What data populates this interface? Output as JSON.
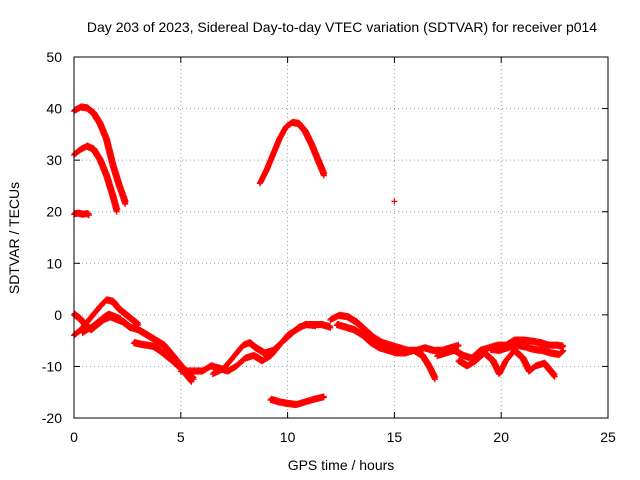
{
  "chart_data": {
    "type": "scatter",
    "title": "Day 203 of 2023, Sidereal Day-to-day VTEC variation (SDTVAR) for receiver p014",
    "xlabel": "GPS time / hours",
    "ylabel": "SDTVAR / TECUs",
    "xlim": [
      0,
      25
    ],
    "ylim": [
      -20,
      50
    ],
    "xticks": [
      0,
      5,
      10,
      15,
      20,
      25
    ],
    "yticks": [
      -20,
      -10,
      0,
      10,
      20,
      30,
      40,
      50
    ],
    "grid": true,
    "marker": "+",
    "color": "#ff0000",
    "series": [
      {
        "name": "arc-top-40",
        "points": [
          [
            0.0,
            39.5
          ],
          [
            0.3,
            40.2
          ],
          [
            0.6,
            40.0
          ],
          [
            0.9,
            39.0
          ],
          [
            1.2,
            37.0
          ],
          [
            1.5,
            34.0
          ],
          [
            1.8,
            29.0
          ],
          [
            2.1,
            25.0
          ],
          [
            2.4,
            21.5
          ]
        ]
      },
      {
        "name": "arc-top-32",
        "points": [
          [
            0.0,
            31.0
          ],
          [
            0.3,
            32.0
          ],
          [
            0.6,
            32.6
          ],
          [
            0.9,
            32.0
          ],
          [
            1.2,
            30.0
          ],
          [
            1.5,
            27.0
          ],
          [
            1.8,
            23.0
          ],
          [
            2.0,
            20.0
          ]
        ]
      },
      {
        "name": "short-20",
        "points": [
          [
            0.0,
            19.5
          ],
          [
            0.2,
            19.6
          ],
          [
            0.4,
            19.4
          ],
          [
            0.6,
            19.5
          ],
          [
            0.7,
            19.3
          ]
        ]
      },
      {
        "name": "arc-mid-37",
        "points": [
          [
            8.7,
            25.5
          ],
          [
            9.0,
            28.0
          ],
          [
            9.3,
            31.0
          ],
          [
            9.6,
            34.0
          ],
          [
            9.9,
            36.3
          ],
          [
            10.2,
            37.2
          ],
          [
            10.5,
            37.0
          ],
          [
            10.8,
            35.5
          ],
          [
            11.1,
            33.0
          ],
          [
            11.4,
            30.0
          ],
          [
            11.7,
            27.0
          ]
        ]
      },
      {
        "name": "isolated-point",
        "points": [
          [
            15.0,
            22.0
          ]
        ]
      },
      {
        "name": "arc-bottom-neg17",
        "points": [
          [
            9.2,
            -16.5
          ],
          [
            9.6,
            -17.0
          ],
          [
            10.0,
            -17.3
          ],
          [
            10.4,
            -17.5
          ],
          [
            10.8,
            -17.0
          ],
          [
            11.2,
            -16.5
          ],
          [
            11.7,
            -16.0
          ]
        ]
      },
      {
        "name": "band-a",
        "points": [
          [
            0.0,
            0.0
          ],
          [
            0.3,
            -1.0
          ],
          [
            0.5,
            -2.0
          ],
          [
            0.8,
            -3.0
          ],
          [
            1.1,
            -2.0
          ],
          [
            1.4,
            -1.0
          ],
          [
            1.7,
            -0.5
          ],
          [
            2.0,
            -1.0
          ],
          [
            2.3,
            -1.5
          ],
          [
            2.6,
            -2.5
          ],
          [
            3.0,
            -3.0
          ],
          [
            3.4,
            -4.0
          ],
          [
            3.8,
            -5.0
          ],
          [
            4.2,
            -6.0
          ],
          [
            4.6,
            -8.0
          ],
          [
            5.0,
            -10.0
          ],
          [
            5.3,
            -11.5
          ],
          [
            5.6,
            -12.5
          ]
        ]
      },
      {
        "name": "band-b",
        "points": [
          [
            0.0,
            -4.0
          ],
          [
            0.3,
            -3.0
          ],
          [
            0.6,
            -1.5
          ],
          [
            0.9,
            0.0
          ],
          [
            1.2,
            1.5
          ],
          [
            1.5,
            2.8
          ],
          [
            1.8,
            2.5
          ],
          [
            2.1,
            1.0
          ],
          [
            2.4,
            0.0
          ],
          [
            2.7,
            -1.0
          ],
          [
            3.0,
            -2.0
          ]
        ]
      },
      {
        "name": "band-c",
        "points": [
          [
            0.4,
            -3.5
          ],
          [
            0.8,
            -2.5
          ],
          [
            1.1,
            -1.5
          ],
          [
            1.4,
            -0.5
          ],
          [
            1.6,
            0.0
          ],
          [
            1.9,
            -0.5
          ],
          [
            2.2,
            -1.0
          ]
        ]
      },
      {
        "name": "band-d",
        "points": [
          [
            2.8,
            -5.5
          ],
          [
            3.1,
            -5.8
          ],
          [
            3.4,
            -6.0
          ],
          [
            3.7,
            -6.2
          ],
          [
            4.0,
            -7.0
          ],
          [
            4.3,
            -8.0
          ],
          [
            4.6,
            -9.0
          ],
          [
            5.0,
            -10.5
          ],
          [
            5.3,
            -12.0
          ],
          [
            5.5,
            -13.0
          ]
        ]
      },
      {
        "name": "band-e",
        "points": [
          [
            5.0,
            -11.0
          ],
          [
            5.5,
            -11.0
          ],
          [
            6.0,
            -11.0
          ],
          [
            6.4,
            -10.0
          ],
          [
            6.8,
            -10.5
          ],
          [
            7.2,
            -11.0
          ],
          [
            7.6,
            -10.0
          ],
          [
            8.0,
            -8.5
          ],
          [
            8.4,
            -8.0
          ],
          [
            8.8,
            -9.0
          ],
          [
            9.2,
            -8.0
          ],
          [
            9.6,
            -6.0
          ],
          [
            10.0,
            -4.0
          ],
          [
            10.4,
            -3.0
          ],
          [
            10.8,
            -2.0
          ],
          [
            11.2,
            -2.0
          ],
          [
            11.6,
            -2.0
          ],
          [
            12.0,
            -2.5
          ]
        ]
      },
      {
        "name": "band-f",
        "points": [
          [
            6.5,
            -11.5
          ],
          [
            7.0,
            -10.5
          ],
          [
            7.5,
            -8.0
          ],
          [
            7.9,
            -6.0
          ],
          [
            8.2,
            -5.5
          ],
          [
            8.5,
            -6.5
          ],
          [
            8.9,
            -7.5
          ],
          [
            9.3,
            -7.0
          ],
          [
            9.7,
            -5.5
          ],
          [
            10.1,
            -4.0
          ],
          [
            10.5,
            -2.5
          ],
          [
            10.9,
            -2.0
          ],
          [
            11.3,
            -2.2
          ]
        ]
      },
      {
        "name": "band-g",
        "points": [
          [
            12.0,
            -1.0
          ],
          [
            12.4,
            -0.2
          ],
          [
            12.8,
            -0.5
          ],
          [
            13.2,
            -1.5
          ],
          [
            13.6,
            -3.0
          ],
          [
            14.0,
            -4.5
          ],
          [
            14.4,
            -5.5
          ],
          [
            14.8,
            -6.0
          ],
          [
            15.2,
            -6.5
          ],
          [
            15.6,
            -7.0
          ],
          [
            16.0,
            -7.0
          ],
          [
            16.4,
            -6.5
          ],
          [
            16.8,
            -7.0
          ],
          [
            17.2,
            -7.0
          ],
          [
            17.6,
            -6.5
          ],
          [
            18.0,
            -6.0
          ]
        ]
      },
      {
        "name": "band-h",
        "points": [
          [
            12.3,
            -2.0
          ],
          [
            12.7,
            -2.5
          ],
          [
            13.1,
            -3.0
          ],
          [
            13.5,
            -4.0
          ],
          [
            13.9,
            -5.5
          ],
          [
            14.3,
            -6.5
          ],
          [
            14.7,
            -7.0
          ],
          [
            15.1,
            -7.5
          ],
          [
            15.5,
            -7.5
          ],
          [
            15.9,
            -7.0
          ],
          [
            16.3,
            -8.0
          ],
          [
            16.6,
            -10.0
          ],
          [
            16.9,
            -12.5
          ]
        ]
      },
      {
        "name": "band-i",
        "points": [
          [
            17.0,
            -8.0
          ],
          [
            17.4,
            -7.5
          ],
          [
            17.8,
            -7.0
          ],
          [
            18.2,
            -8.0
          ],
          [
            18.6,
            -8.5
          ],
          [
            19.0,
            -7.0
          ],
          [
            19.4,
            -6.5
          ],
          [
            19.8,
            -6.0
          ],
          [
            20.2,
            -6.0
          ],
          [
            20.6,
            -5.0
          ],
          [
            21.0,
            -5.0
          ],
          [
            21.4,
            -5.2
          ],
          [
            21.8,
            -5.5
          ],
          [
            22.2,
            -6.0
          ],
          [
            22.6,
            -6.0
          ],
          [
            22.9,
            -6.2
          ]
        ]
      },
      {
        "name": "band-j",
        "points": [
          [
            18.0,
            -9.0
          ],
          [
            18.4,
            -10.0
          ],
          [
            18.8,
            -9.0
          ],
          [
            19.2,
            -7.5
          ],
          [
            19.6,
            -9.0
          ],
          [
            19.9,
            -11.5
          ],
          [
            20.2,
            -9.0
          ],
          [
            20.6,
            -7.0
          ],
          [
            21.0,
            -8.5
          ],
          [
            21.3,
            -11.0
          ],
          [
            21.6,
            -10.0
          ],
          [
            22.0,
            -9.5
          ],
          [
            22.3,
            -11.0
          ],
          [
            22.5,
            -12.0
          ]
        ]
      },
      {
        "name": "band-k",
        "points": [
          [
            19.5,
            -6.8
          ],
          [
            19.9,
            -7.0
          ],
          [
            20.3,
            -6.5
          ],
          [
            20.7,
            -6.0
          ],
          [
            21.1,
            -6.3
          ],
          [
            21.5,
            -6.8
          ],
          [
            21.9,
            -7.0
          ],
          [
            22.3,
            -7.5
          ],
          [
            22.7,
            -7.8
          ],
          [
            22.9,
            -7.0
          ]
        ]
      }
    ]
  }
}
